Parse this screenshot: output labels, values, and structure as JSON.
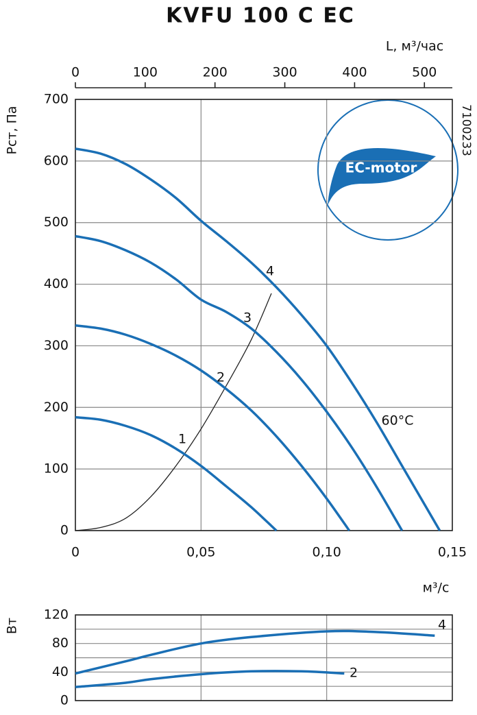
{
  "chart_data": [
    {
      "type": "line",
      "title": "KVFU 100 C EC",
      "y_label": "Pст, Па",
      "x_label": "м³/с",
      "x2_label": "L, м³/час",
      "code": "7100233",
      "annotation": "60°C",
      "logo": "EC-motor",
      "color": "#1a6fb5",
      "xlim": [
        0,
        0.15
      ],
      "xticks": [
        0,
        {
          "value": 0.05,
          "label": "0,05"
        },
        {
          "value": 0.1,
          "label": "0,10"
        },
        {
          "value": 0.15,
          "label": "0,15"
        }
      ],
      "ylim": [
        0,
        700
      ],
      "yticks": [
        0,
        100,
        200,
        300,
        400,
        500,
        600,
        700
      ],
      "x2lim": [
        0,
        540
      ],
      "x2ticks": [
        0,
        100,
        200,
        300,
        400,
        500
      ],
      "grid": true,
      "series": [
        {
          "name": "1",
          "color": "#1a6fb5",
          "x": [
            0,
            0.01,
            0.02,
            0.03,
            0.04,
            0.05,
            0.06,
            0.07,
            0.08
          ],
          "values": [
            184,
            180,
            170,
            155,
            133,
            105,
            72,
            38,
            0
          ]
        },
        {
          "name": "2",
          "color": "#1a6fb5",
          "x": [
            0,
            0.01,
            0.02,
            0.03,
            0.04,
            0.05,
            0.06,
            0.07,
            0.08,
            0.09,
            0.1,
            0.109
          ],
          "values": [
            333,
            328,
            318,
            303,
            284,
            260,
            230,
            195,
            153,
            105,
            52,
            0
          ]
        },
        {
          "name": "3",
          "color": "#1a6fb5",
          "x": [
            0,
            0.01,
            0.02,
            0.03,
            0.04,
            0.05,
            0.06,
            0.07,
            0.08,
            0.09,
            0.1,
            0.11,
            0.12,
            0.13
          ],
          "values": [
            478,
            470,
            455,
            435,
            408,
            375,
            355,
            328,
            290,
            245,
            193,
            135,
            70,
            0
          ]
        },
        {
          "name": "4",
          "color": "#1a6fb5",
          "x": [
            0,
            0.01,
            0.02,
            0.03,
            0.04,
            0.05,
            0.06,
            0.07,
            0.08,
            0.09,
            0.1,
            0.11,
            0.12,
            0.13,
            0.14,
            0.145
          ],
          "values": [
            620,
            612,
            595,
            570,
            540,
            503,
            470,
            435,
            395,
            350,
            300,
            240,
            175,
            105,
            35,
            0
          ]
        }
      ],
      "system_curve": {
        "color": "#222",
        "x": [
          0,
          0.01,
          0.02,
          0.03,
          0.04,
          0.05,
          0.06,
          0.07,
          0.078
        ],
        "values": [
          0,
          5,
          20,
          55,
          105,
          165,
          235,
          310,
          385
        ]
      }
    },
    {
      "type": "line",
      "y_label": "Вт",
      "xlim": [
        0,
        0.15
      ],
      "xgrid": [
        0.05,
        0.1
      ],
      "ylim": [
        0,
        120
      ],
      "yticks": [
        0,
        40,
        80,
        120
      ],
      "minor_yticks": [
        20,
        60,
        100
      ],
      "series": [
        {
          "name": "4",
          "color": "#1a6fb5",
          "x": [
            0,
            0.02,
            0.03,
            0.05,
            0.07,
            0.1,
            0.12,
            0.143
          ],
          "values": [
            38,
            55,
            64,
            80,
            89,
            97,
            96,
            91
          ]
        },
        {
          "name": "2",
          "color": "#1a6fb5",
          "x": [
            0,
            0.02,
            0.03,
            0.05,
            0.07,
            0.09,
            0.107
          ],
          "values": [
            19,
            25,
            30,
            37,
            41,
            41,
            38
          ]
        }
      ]
    }
  ]
}
